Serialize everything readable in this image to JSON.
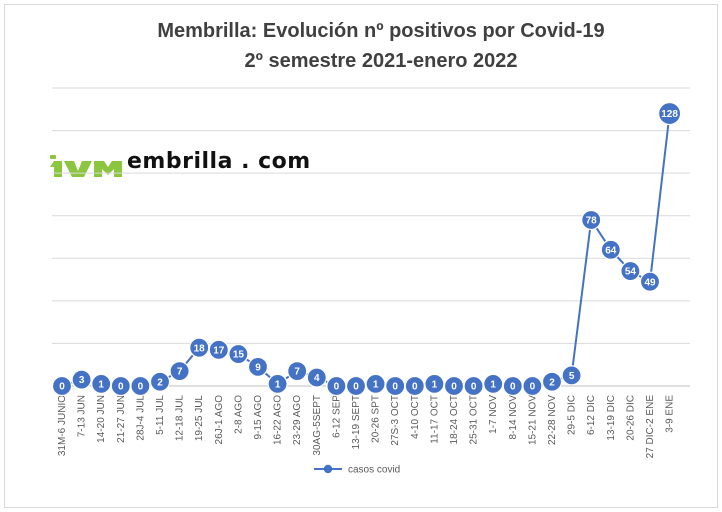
{
  "chart_data": {
    "type": "line",
    "title": "Membrilla: Evolución nº positivos por Covid-19",
    "subtitle": "2º semestre 2021-enero 2022",
    "categories": [
      "31M-6 JUNIO",
      "7-13 JUN",
      "14-20 JUN",
      "21-27 JUN",
      "28J-4 JUL",
      "5-11 JUL",
      "12-18 JUL",
      "19-25 JUL",
      "26J-1 AGO",
      "2-8 AGO",
      "9-15 AGO",
      "16-22 AGO",
      "23-29 AGO",
      "30AG-5SEPT",
      "6-12 SEP",
      "13-19 SEPT",
      "20-26 SPT",
      "27S-3 OCT",
      "4-10 OCT",
      "11-17 OCT",
      "18-24 OCT",
      "25-31 OCT",
      "1-7 NOV",
      "8-14 NOV",
      "15-21 NOV",
      "22-28 NOV",
      "29-5 DIC",
      "6-12 DIC",
      "13-19 DIC",
      "20-26 DIC",
      "27 DIC-2 ENE",
      "3-9 ENE"
    ],
    "series": [
      {
        "name": "casos covid",
        "values": [
          0,
          3,
          1,
          0,
          0,
          2,
          7,
          18,
          17,
          15,
          9,
          1,
          7,
          4,
          0,
          0,
          1,
          0,
          0,
          1,
          0,
          0,
          1,
          0,
          0,
          2,
          5,
          78,
          64,
          54,
          49,
          128
        ]
      }
    ],
    "xlabel": "",
    "ylabel": "",
    "ylim": [
      0,
      140
    ],
    "grid": true,
    "legend_position": "bottom",
    "colors": {
      "series": "#4472c4",
      "grid": "#d9d9d9",
      "axis": "#bfbfbf",
      "title": "#404040"
    }
  },
  "logo": {
    "text": "embrilla . com",
    "accent_color": "#8cc63f",
    "icon": "membrilla-logo-icon"
  }
}
